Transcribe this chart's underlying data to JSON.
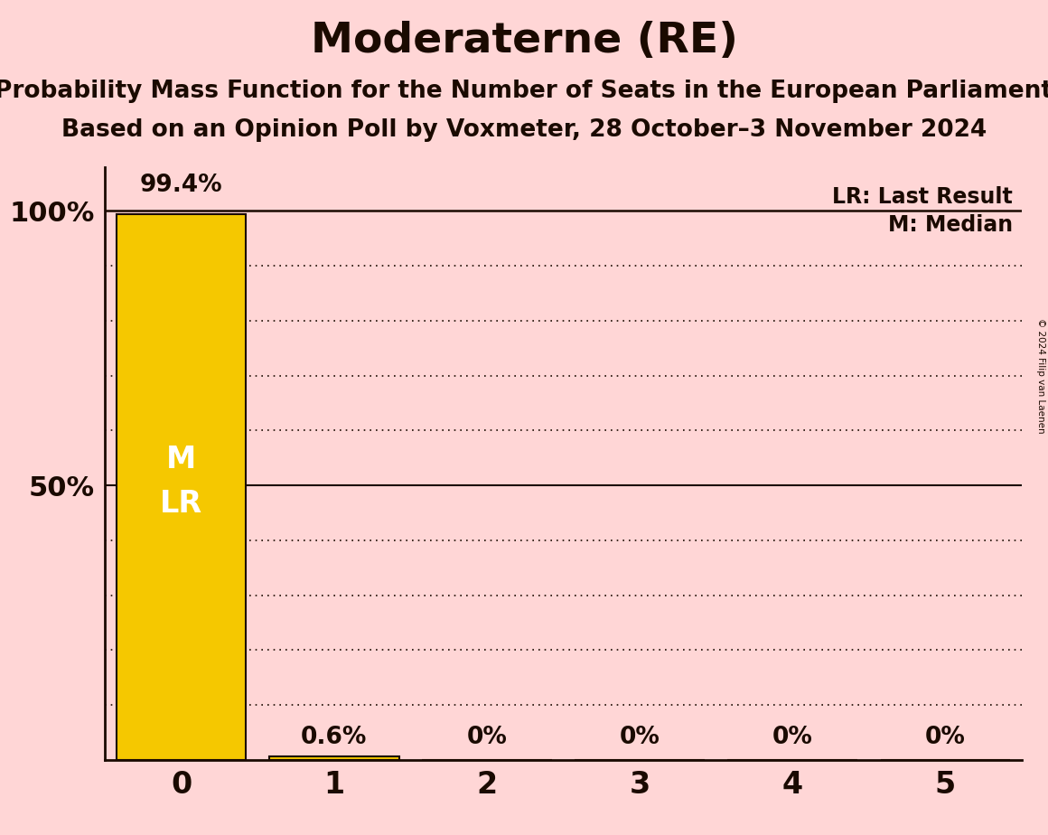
{
  "title": "Moderaterne (RE)",
  "subtitle1": "Probability Mass Function for the Number of Seats in the European Parliament",
  "subtitle2": "Based on an Opinion Poll by Voxmeter, 28 October–3 November 2024",
  "copyright": "© 2024 Filip van Laenen",
  "categories": [
    0,
    1,
    2,
    3,
    4,
    5
  ],
  "values": [
    99.4,
    0.6,
    0.0,
    0.0,
    0.0,
    0.0
  ],
  "bar_color": "#F5C800",
  "background_color": "#FFD6D6",
  "title_fontsize": 34,
  "subtitle_fontsize": 19,
  "ylabel_values": [
    0,
    10,
    20,
    30,
    40,
    50,
    60,
    70,
    80,
    90,
    100
  ],
  "ytick_labels_show": [
    50,
    100
  ],
  "ylim": [
    0,
    108
  ],
  "xlim": [
    -0.5,
    5.5
  ],
  "legend_lr": "LR: Last Result",
  "legend_m": "M: Median",
  "text_color": "#1a0a00",
  "value_labels": [
    "99.4%",
    "0.6%",
    "0%",
    "0%",
    "0%",
    "0%"
  ]
}
